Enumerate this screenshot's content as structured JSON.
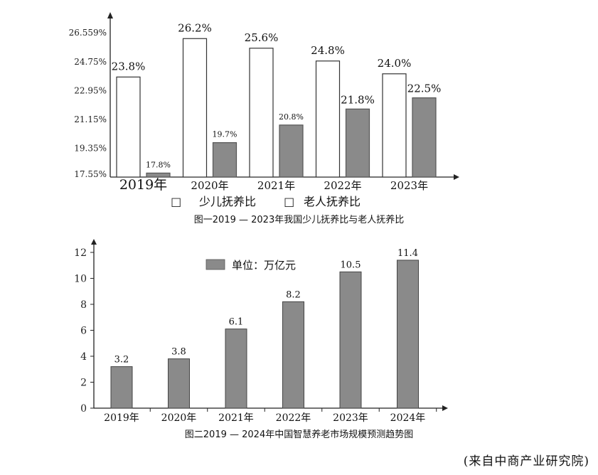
{
  "chart_data": [
    {
      "type": "bar",
      "categories": [
        "2019年",
        "2020年",
        "2021年",
        "2022年",
        "2023年"
      ],
      "y_ticks": [
        "26.559%",
        "24.75%",
        "22.95%",
        "21.15%",
        "19.35%",
        "17.55%"
      ],
      "ylim": [
        17.55,
        27.5
      ],
      "legend_position": "bottom",
      "series": [
        {
          "name": "少儿抚养比",
          "values": [
            23.8,
            26.2,
            25.6,
            24.8,
            24.0
          ],
          "labels": [
            "23.8%",
            "26.2%",
            "25.6%",
            "24.8%",
            "24.0%"
          ],
          "color": "#ffffff"
        },
        {
          "name": "老人抚养比",
          "values": [
            17.8,
            19.7,
            20.8,
            21.8,
            22.5
          ],
          "labels": [
            "17.8%",
            "19.7%",
            "20.8%",
            "21.8%",
            "22.5%"
          ],
          "color": "#8a8a8a"
        }
      ],
      "legend_marker": "☐",
      "caption": "图一2019 — 2023年我国少儿抚养比与老人抚养比"
    },
    {
      "type": "bar",
      "categories": [
        "2019年",
        "2020年",
        "2021年",
        "2022年",
        "2023年",
        "2024年"
      ],
      "y_ticks": [
        "0",
        "2",
        "4",
        "6",
        "8",
        "10",
        "12"
      ],
      "ylim": [
        0,
        12.6
      ],
      "series": [
        {
          "name": "单位：万亿元",
          "values": [
            3.2,
            3.8,
            6.1,
            8.2,
            10.5,
            11.4
          ],
          "labels": [
            "3.2",
            "3.8",
            "6.1",
            "8.2",
            "10.5",
            "11.4"
          ],
          "color": "#8a8a8a"
        }
      ],
      "legend_position": "top",
      "caption": "图二2019 — 2024年中国智慧养老市场规模预测趋势图"
    }
  ],
  "source": "(来自中商产业研究院)"
}
